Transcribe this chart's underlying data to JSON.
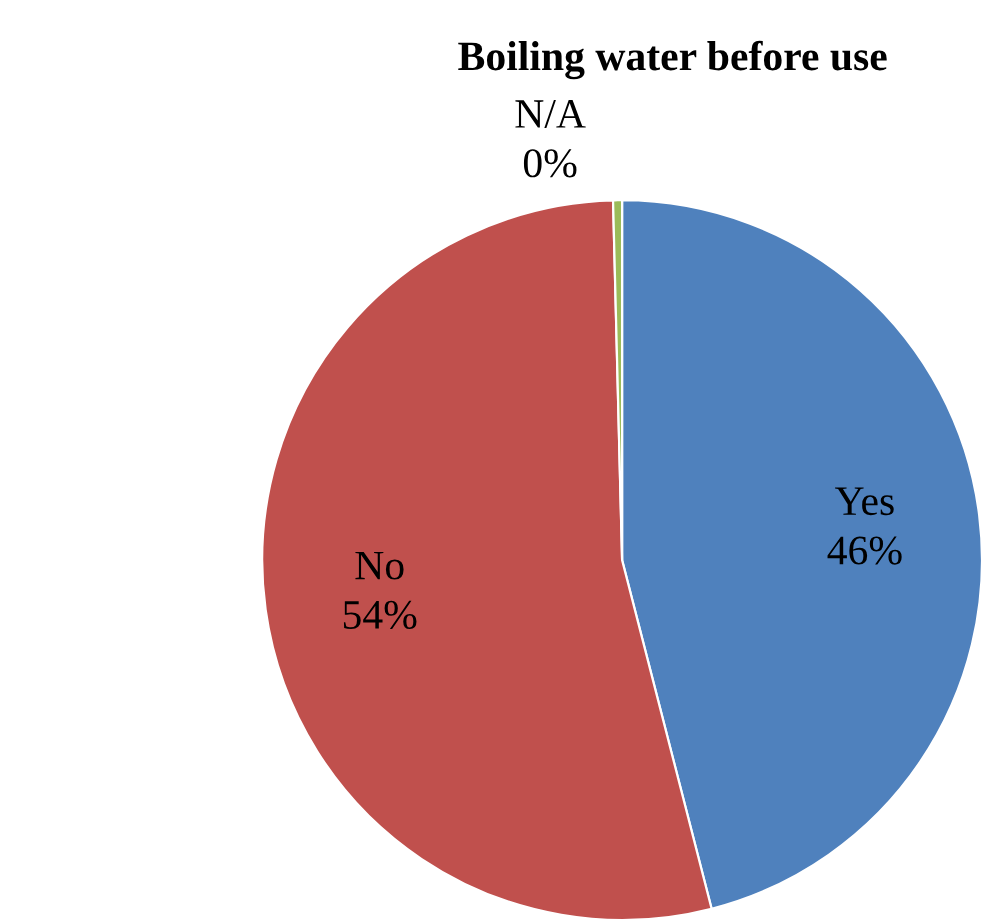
{
  "chart_data": {
    "type": "pie",
    "title": "Boiling water before use",
    "categories": [
      "Yes",
      "No",
      "N/A"
    ],
    "values": [
      46,
      53.6,
      0.4
    ],
    "value_labels": [
      "46%",
      "54%",
      "0%"
    ],
    "colors": [
      "#4f81bd",
      "#c0504d",
      "#9bbb59"
    ],
    "legend": false
  }
}
